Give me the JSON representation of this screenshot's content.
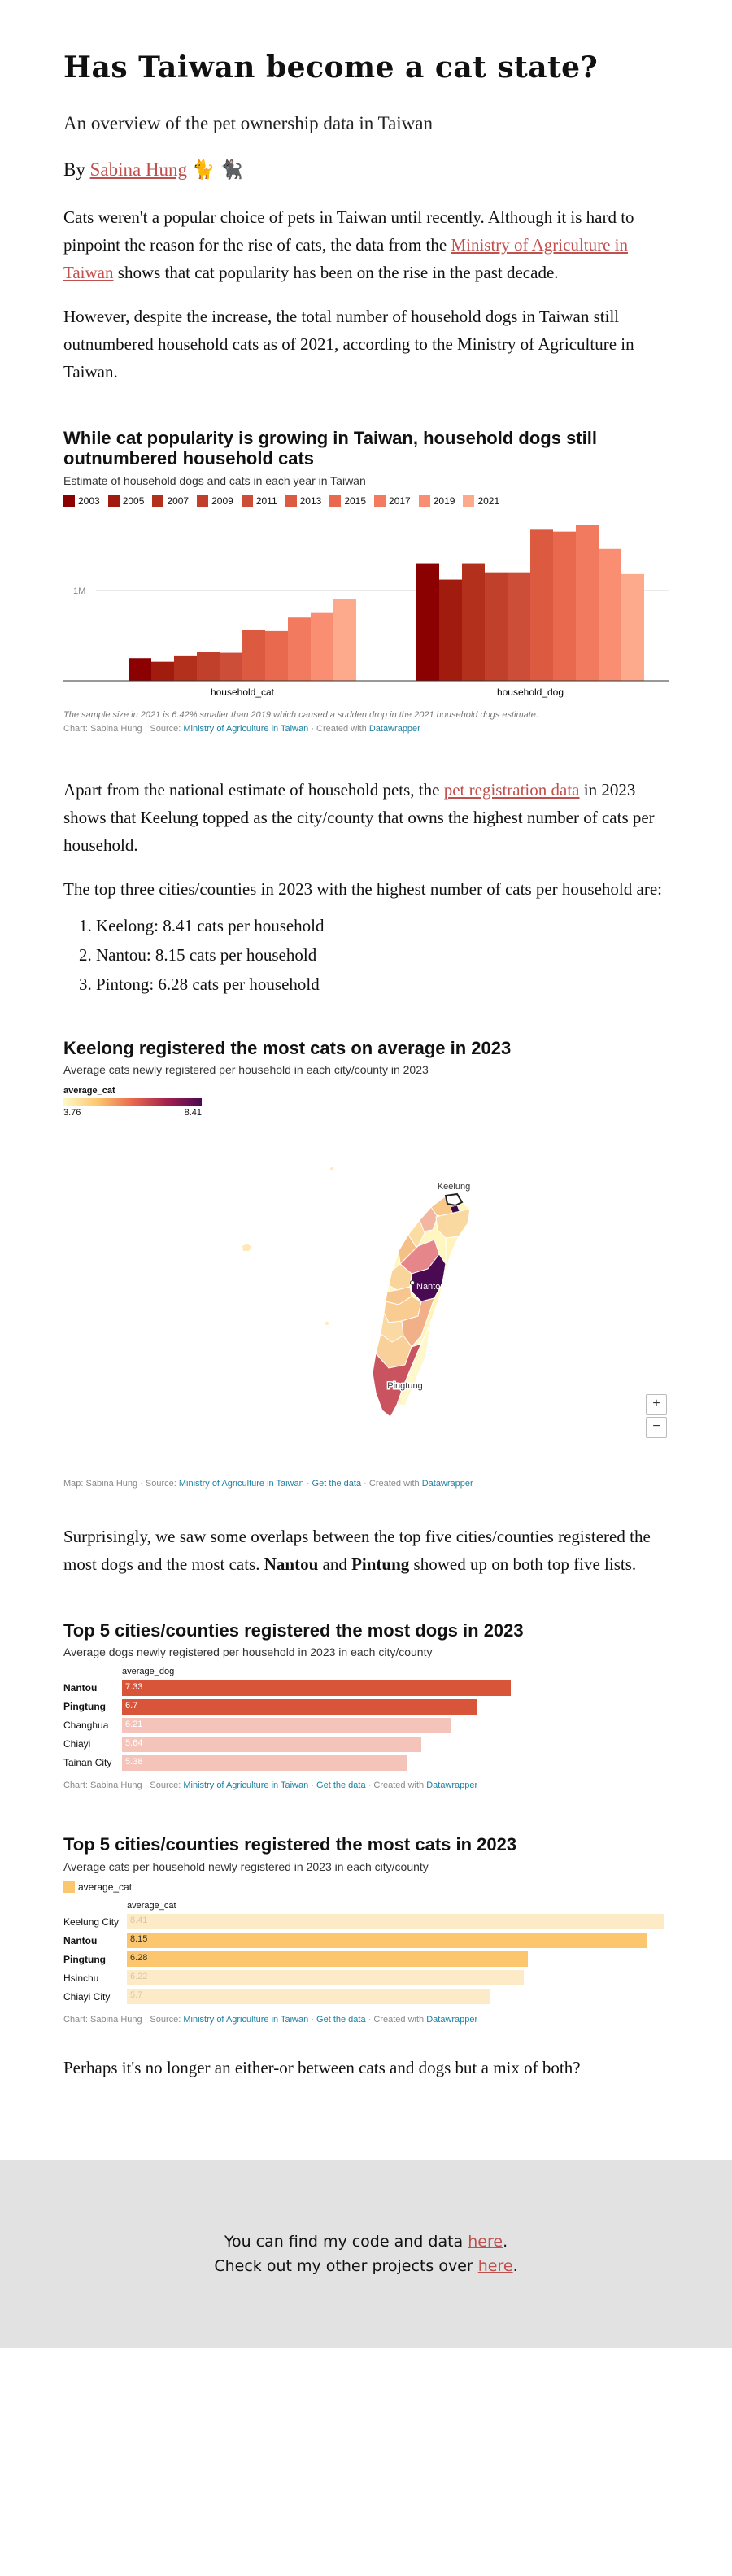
{
  "article": {
    "title": "Has Taiwan become a cat state?",
    "subtitle": "An overview of the pet ownership data in Taiwan",
    "byline_prefix": "By",
    "author": "Sabina Hung",
    "byline_emoji": "🐈 🐈‍⬛",
    "p1_before": "Cats weren't a popular choice of pets in Taiwan until recently. Although it is hard to pinpoint the reason for the rise of cats, the data from the",
    "p1_link": "Ministry of Agriculture in Taiwan",
    "p1_after": "shows that cat popularity has been on the rise in the past decade.",
    "p2": "However, despite the increase, the total number of household dogs in Taiwan still outnumbered household cats as of 2021, according to the Ministry of Agriculture in Taiwan.",
    "p3_before": "Apart from the national estimate of household pets, the",
    "p3_link": "pet registration data",
    "p3_after": "in 2023 shows that Keelung topped as the city/county that owns the highest number of cats per household.",
    "p4": "The top three cities/counties in 2023 with the highest number of cats per household are:",
    "top3": [
      "Keelong: 8.41 cats per household",
      "Nantou: 8.15 cats per household",
      "Pintong: 6.28 cats per household"
    ],
    "p5_a": "Surprisingly, we saw some overlaps between the top five cities/counties registered the most dogs and the most cats.",
    "p5_b": "Nantou",
    "p5_c": "and",
    "p5_d": "Pintung",
    "p5_e": "showed up on both top five lists.",
    "p6": "Perhaps it's no longer an either-or between cats and dogs but a mix of both?"
  },
  "footer": {
    "line1_before": "You can find my code and data",
    "line1_link": "here",
    "line2_before": "Check out my other projects over",
    "line2_link": "here",
    "period": "."
  },
  "credits": {
    "chart_prefix": "Chart: Sabina Hung · Source:",
    "map_prefix": "Map: Sabina Hung · Source:",
    "source": "Ministry of Agriculture in Taiwan",
    "sep": "·",
    "get_data": "Get the data",
    "created": "· Created with",
    "tool": "Datawrapper"
  },
  "map": {
    "title": "Keelong registered the most cats on average in 2023",
    "subtitle": "Average cats newly registered per household in each city/county in 2023",
    "legend_title": "average_cat",
    "legend_min": "3.76",
    "legend_max": "8.41",
    "labels": [
      "Keelung",
      "Nantou",
      "Pingtung"
    ],
    "zoom_in": "+",
    "zoom_out": "−",
    "colors": {
      "low": "#fff9c4",
      "high": "#4a0a52"
    }
  },
  "chart_data": [
    {
      "type": "bar",
      "title": "While cat popularity is growing in Taiwan, household dogs still outnumbered household cats",
      "subtitle": "Estimate of household dogs and cats in each year in Taiwan",
      "categories": [
        "household_cat",
        "household_dog"
      ],
      "series": [
        {
          "name": "2003",
          "color": "#8b0000",
          "values": [
            250000,
            1300000
          ]
        },
        {
          "name": "2005",
          "color": "#a11b0e",
          "values": [
            210000,
            1120000
          ]
        },
        {
          "name": "2007",
          "color": "#b3301d",
          "values": [
            280000,
            1300000
          ]
        },
        {
          "name": "2009",
          "color": "#c0402b",
          "values": [
            320000,
            1200000
          ]
        },
        {
          "name": "2011",
          "color": "#cc4e38",
          "values": [
            310000,
            1200000
          ]
        },
        {
          "name": "2013",
          "color": "#db5a40",
          "values": [
            560000,
            1680000
          ]
        },
        {
          "name": "2015",
          "color": "#e8694d",
          "values": [
            550000,
            1650000
          ]
        },
        {
          "name": "2017",
          "color": "#f27a5e",
          "values": [
            700000,
            1720000
          ]
        },
        {
          "name": "2019",
          "color": "#f98e72",
          "values": [
            750000,
            1460000
          ]
        },
        {
          "name": "2021",
          "color": "#fdaa8c",
          "values": [
            900000,
            1180000
          ]
        }
      ],
      "ytick_label": "1M",
      "ytick_value": 1000000,
      "ylim": [
        0,
        1800000
      ],
      "note": "The sample size in 2021 is 6.42% smaller than 2019 which caused a sudden drop in the 2021 household dogs estimate."
    },
    {
      "type": "bar",
      "title": "Top 5 cities/counties registered the most dogs in 2023",
      "subtitle": "Average dogs newly registered per household in 2023 in each city/county",
      "column_header": "average_dog",
      "categories": [
        "Nantou",
        "Pingtung",
        "Changhua",
        "Chiayi",
        "Tainan City"
      ],
      "bold": [
        true,
        true,
        false,
        false,
        false
      ],
      "values": [
        7.33,
        6.7,
        6.21,
        5.64,
        5.38
      ],
      "colors": [
        "#d9553a",
        "#d9553a",
        "#f4c3ba",
        "#f4c3ba",
        "#f4c3ba"
      ],
      "xlim": [
        0,
        7.33
      ]
    },
    {
      "type": "bar",
      "title": "Top 5 cities/counties registered the most cats in 2023",
      "subtitle": "Average cats per household newly registered in 2023 in each city/county",
      "legend": "average_cat",
      "column_header": "average_cat",
      "categories": [
        "Keelung City",
        "Nantou",
        "Pingtung",
        "Hsinchu",
        "Chiayi City"
      ],
      "bold": [
        false,
        true,
        true,
        false,
        false
      ],
      "values": [
        8.41,
        8.15,
        6.28,
        6.22,
        5.7
      ],
      "colors": [
        "#fdebc7",
        "#fcc66e",
        "#fcc66e",
        "#fdebc7",
        "#fdebc7"
      ],
      "xlim": [
        0,
        8.41
      ]
    }
  ]
}
